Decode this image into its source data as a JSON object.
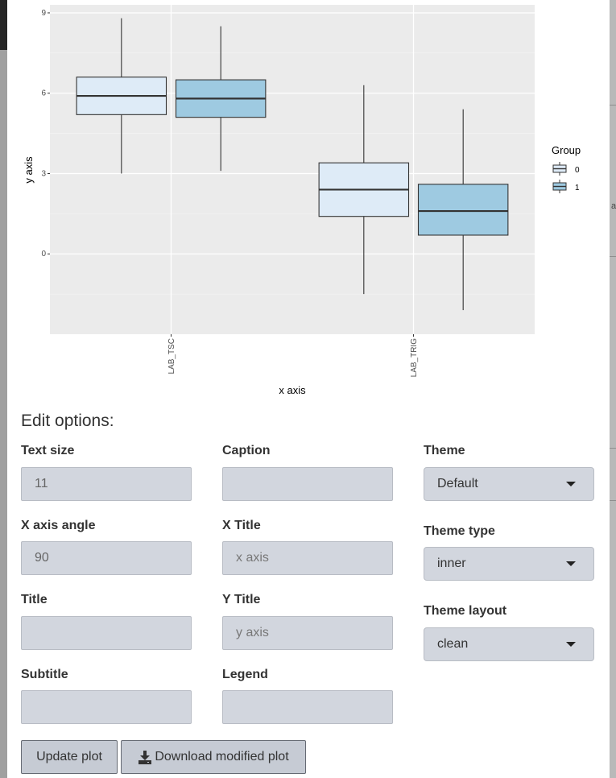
{
  "chart_data": {
    "type": "box",
    "title": "",
    "xlabel": "x axis",
    "ylabel": "y axis",
    "ylim": [
      -3.0,
      9.3
    ],
    "yticks": [
      0,
      3,
      6,
      9
    ],
    "grid": true,
    "legend_position": "right",
    "legend_title": "Group",
    "categories": [
      "LAB_TSC",
      "LAB_TRIG"
    ],
    "series": [
      {
        "name": "0",
        "color": "#deebf7",
        "boxes": [
          {
            "category": "LAB_TSC",
            "whisker_low": 3.0,
            "q1": 5.2,
            "median": 5.9,
            "q3": 6.6,
            "whisker_high": 8.8
          },
          {
            "category": "LAB_TRIG",
            "whisker_low": -1.5,
            "q1": 1.4,
            "median": 2.4,
            "q3": 3.4,
            "whisker_high": 6.3
          }
        ]
      },
      {
        "name": "1",
        "color": "#9ecae1",
        "boxes": [
          {
            "category": "LAB_TSC",
            "whisker_low": 3.1,
            "q1": 5.1,
            "median": 5.8,
            "q3": 6.5,
            "whisker_high": 8.5
          },
          {
            "category": "LAB_TRIG",
            "whisker_low": -2.1,
            "q1": 0.7,
            "median": 1.6,
            "q3": 2.6,
            "whisker_high": 5.4
          }
        ]
      }
    ]
  },
  "options": {
    "heading": "Edit options:",
    "text_size": {
      "label": "Text size",
      "value": "11"
    },
    "x_axis_angle": {
      "label": "X axis angle",
      "value": "90"
    },
    "title": {
      "label": "Title",
      "value": ""
    },
    "subtitle": {
      "label": "Subtitle",
      "value": ""
    },
    "caption": {
      "label": "Caption",
      "value": ""
    },
    "x_title": {
      "label": "X Title",
      "value": "",
      "placeholder": "x axis"
    },
    "y_title": {
      "label": "Y Title",
      "value": "",
      "placeholder": "y axis"
    },
    "legend": {
      "label": "Legend",
      "value": ""
    },
    "theme": {
      "label": "Theme",
      "value": "Default"
    },
    "theme_type": {
      "label": "Theme type",
      "value": "inner"
    },
    "theme_layout": {
      "label": "Theme layout",
      "value": "clean"
    }
  },
  "buttons": {
    "update": "Update plot",
    "download": "Download modified plot",
    "download_icon": "download-icon"
  }
}
